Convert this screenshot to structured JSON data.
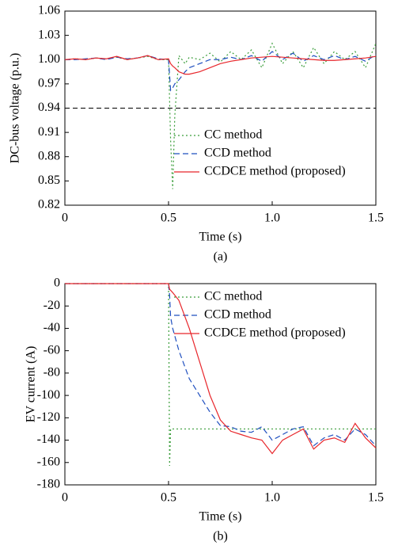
{
  "chart_data": [
    {
      "type": "line",
      "xlabel": "Time (s)",
      "ylabel": "DC-bus voltage (p.u.)",
      "caption": "(a)",
      "xlim": [
        0,
        1.5
      ],
      "ylim": [
        0.82,
        1.06
      ],
      "xticks": [
        0,
        0.5,
        {
          "value": 1,
          "label": "1.0"
        },
        1.5
      ],
      "yticks": [
        0.82,
        0.85,
        0.88,
        0.91,
        0.94,
        0.97,
        {
          "value": 1,
          "label": "1.00"
        },
        1.03,
        1.06
      ],
      "hlines": [
        1.06,
        0.94
      ],
      "legend": "lower-right",
      "grid": false,
      "x": [
        0,
        0.05,
        0.1,
        0.15,
        0.2,
        0.25,
        0.3,
        0.35,
        0.4,
        0.45,
        0.5,
        0.51,
        0.52,
        0.53,
        0.55,
        0.58,
        0.6,
        0.65,
        0.7,
        0.75,
        0.8,
        0.85,
        0.9,
        0.95,
        1.0,
        1.05,
        1.1,
        1.15,
        1.2,
        1.25,
        1.3,
        1.35,
        1.4,
        1.45,
        1.5
      ],
      "series": [
        {
          "name": "CC method",
          "color": "#3a9d3a",
          "linestyle": "dotted",
          "values": [
            1.0,
            1.001,
            1.0,
            1.002,
            1.001,
            1.003,
            1.0,
            1.002,
            1.004,
            1.0,
            1.0,
            0.9,
            0.84,
            0.93,
            1.005,
            0.995,
            1.003,
            1.0,
            1.008,
            0.997,
            1.01,
            1.0,
            1.012,
            0.99,
            1.02,
            0.995,
            1.01,
            0.99,
            1.015,
            0.995,
            1.01,
            1.0,
            1.01,
            0.99,
            1.02
          ]
        },
        {
          "name": "CCD method",
          "color": "#1f4fbf",
          "linestyle": "dashed",
          "values": [
            1.0,
            1.0,
            1.001,
            1.002,
            1.0,
            1.003,
            1.001,
            1.002,
            1.005,
            1.001,
            1.0,
            0.962,
            0.965,
            0.97,
            0.975,
            0.985,
            0.99,
            0.995,
            1.0,
            1.0,
            1.003,
            1.0,
            1.005,
            0.998,
            1.01,
            1.0,
            1.008,
            0.998,
            1.005,
            1.0,
            1.005,
            1.0,
            1.004,
            0.998,
            1.006
          ]
        },
        {
          "name": "CCDCE method (proposed)",
          "color": "#e8262b",
          "linestyle": "solid",
          "values": [
            1.0,
            1.001,
            1.0,
            1.002,
            1.001,
            1.004,
            1.0,
            1.002,
            1.005,
            1.0,
            1.001,
            0.995,
            0.992,
            0.99,
            0.985,
            0.982,
            0.982,
            0.985,
            0.99,
            0.995,
            0.998,
            1.0,
            1.002,
            1.003,
            1.004,
            1.003,
            1.002,
            1.001,
            1.0,
            0.999,
            0.999,
            1.0,
            1.001,
            1.002,
            1.004
          ]
        }
      ]
    },
    {
      "type": "line",
      "xlabel": "Time (s)",
      "ylabel": "EV current (A)",
      "caption": "(b)",
      "xlim": [
        0,
        1.5
      ],
      "ylim": [
        -180,
        0
      ],
      "xticks": [
        0,
        0.5,
        {
          "value": 1,
          "label": "1.0"
        },
        1.5
      ],
      "yticks": [
        0,
        -20,
        -40,
        -60,
        -80,
        -100,
        -120,
        -140,
        -160,
        -180
      ],
      "legend": "upper-right",
      "grid": false,
      "x": [
        0,
        0.25,
        0.49,
        0.5,
        0.505,
        0.51,
        0.52,
        0.55,
        0.6,
        0.65,
        0.7,
        0.75,
        0.8,
        0.85,
        0.9,
        0.95,
        1.0,
        1.05,
        1.1,
        1.15,
        1.2,
        1.25,
        1.3,
        1.35,
        1.4,
        1.45,
        1.5
      ],
      "series": [
        {
          "name": "CC method",
          "color": "#3a9d3a",
          "linestyle": "dotted",
          "values": [
            0,
            0,
            0,
            0,
            -163,
            -130,
            -130,
            -130,
            -130,
            -130,
            -130,
            -130,
            -130,
            -130,
            -130,
            -130,
            -130,
            -130,
            -130,
            -130,
            -130,
            -130,
            -130,
            -130,
            -130,
            -130,
            -130
          ]
        },
        {
          "name": "CCD method",
          "color": "#1f4fbf",
          "linestyle": "dashed",
          "values": [
            0,
            0,
            0,
            0,
            -10,
            -30,
            -40,
            -60,
            -85,
            -100,
            -115,
            -127,
            -128,
            -132,
            -133,
            -128,
            -140,
            -135,
            -130,
            -128,
            -145,
            -138,
            -135,
            -140,
            -130,
            -135,
            -145
          ]
        },
        {
          "name": "CCDCE method (proposed)",
          "color": "#e8262b",
          "linestyle": "solid",
          "values": [
            0,
            0,
            0,
            0,
            -5,
            -6,
            -8,
            -15,
            -40,
            -70,
            -100,
            -122,
            -132,
            -135,
            -138,
            -140,
            -152,
            -140,
            -135,
            -130,
            -148,
            -140,
            -138,
            -142,
            -125,
            -138,
            -147
          ]
        }
      ]
    }
  ]
}
